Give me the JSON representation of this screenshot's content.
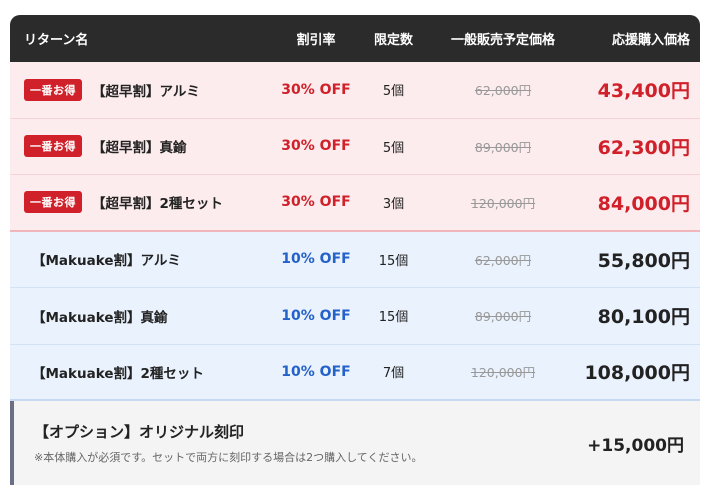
{
  "header": {
    "name": "リターン名",
    "discount": "割引率",
    "limit": "限定数",
    "original": "一般販売予定価格",
    "price": "応援購入価格"
  },
  "early_rows": [
    {
      "badge": "一番お得",
      "name": "【超早割】アルミ",
      "discount": "30% OFF",
      "limit": "5個",
      "original": "62,000円",
      "price": "43,400円"
    },
    {
      "badge": "一番お得",
      "name": "【超早割】真鍮",
      "discount": "30% OFF",
      "limit": "5個",
      "original": "89,000円",
      "price": "62,300円"
    },
    {
      "badge": "一番お得",
      "name": "【超早割】2種セット",
      "discount": "30% OFF",
      "limit": "3個",
      "original": "120,000円",
      "price": "84,000円"
    }
  ],
  "makuake_rows": [
    {
      "name": "【Makuake割】アルミ",
      "discount": "10% OFF",
      "limit": "15個",
      "original": "62,000円",
      "price": "55,800円"
    },
    {
      "name": "【Makuake割】真鍮",
      "discount": "10% OFF",
      "limit": "15個",
      "original": "89,000円",
      "price": "80,100円"
    },
    {
      "name": "【Makuake割】2種セット",
      "discount": "10% OFF",
      "limit": "7個",
      "original": "120,000円",
      "price": "108,000円"
    }
  ],
  "option": {
    "title": "【オプション】オリジナル刻印",
    "note": "※本体購入が必須です。セットで両方に刻印する場合は2つ購入してください。",
    "price": "+15,000円"
  },
  "colors": {
    "header_bg": "#2b2b2b",
    "early_bg": "#fdeced",
    "makuake_bg": "#e9f2fd",
    "accent_red": "#d0202a",
    "accent_blue": "#2462c9"
  }
}
